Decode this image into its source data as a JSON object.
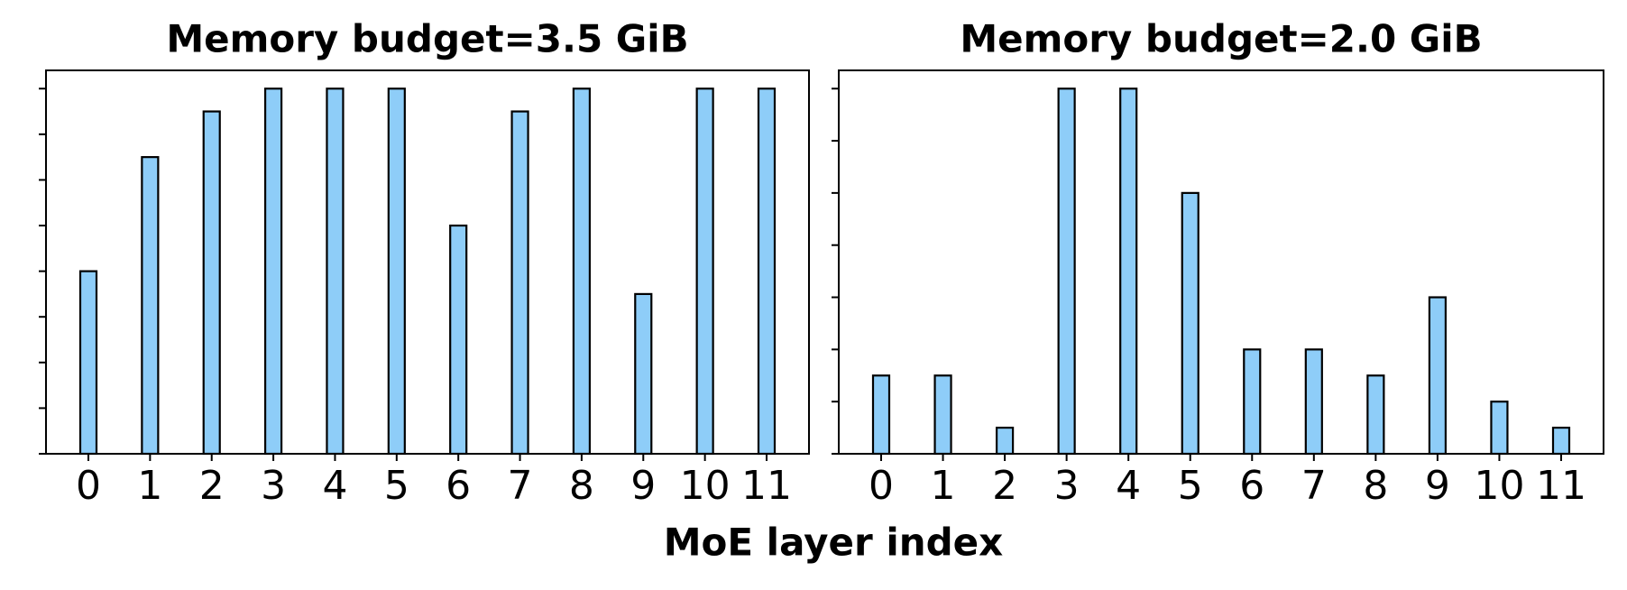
{
  "chart_data": [
    {
      "type": "bar",
      "title": "Memory budget=3.5 GiB",
      "categories": [
        "0",
        "1",
        "2",
        "3",
        "4",
        "5",
        "6",
        "7",
        "8",
        "9",
        "10",
        "11"
      ],
      "values": [
        4,
        6.5,
        7.5,
        8,
        8,
        8,
        5,
        7.5,
        8,
        3.5,
        8,
        8
      ],
      "color": "#8ecdf8",
      "edgecolor": "#000000",
      "ylim": [
        0,
        8.4
      ],
      "yticks": [
        0,
        1,
        2,
        3,
        4,
        5,
        6,
        7,
        8
      ],
      "grid": false
    },
    {
      "type": "bar",
      "title": "Memory budget=2.0 GiB",
      "categories": [
        "0",
        "1",
        "2",
        "3",
        "4",
        "5",
        "6",
        "7",
        "8",
        "9",
        "10",
        "11"
      ],
      "values": [
        1.5,
        1.5,
        0.5,
        7,
        7,
        5,
        2,
        2,
        1.5,
        3,
        1,
        0.5
      ],
      "color": "#8ecdf8",
      "edgecolor": "#000000",
      "ylim": [
        0,
        7.35
      ],
      "yticks": [
        0,
        1,
        2,
        3,
        4,
        5,
        6,
        7
      ],
      "grid": false
    }
  ],
  "xlabel": "MoE layer index"
}
